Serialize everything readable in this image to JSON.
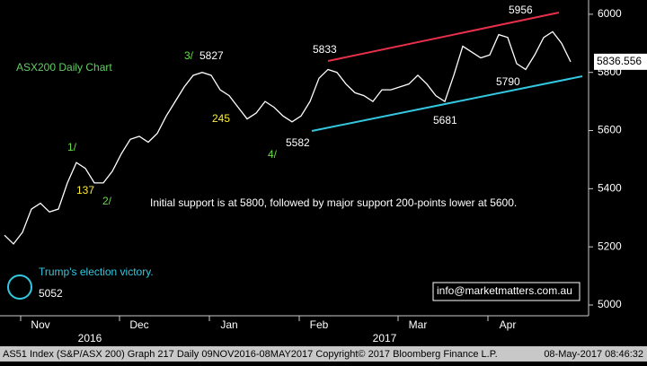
{
  "chart_data": {
    "type": "line",
    "title": "ASX200 Daily Chart",
    "color": "#ffffff",
    "categories": [
      null,
      null,
      null,
      null,
      "Nov",
      null,
      null,
      null,
      null,
      null,
      null,
      null,
      null,
      null,
      null,
      "Dec",
      null,
      null,
      null,
      null,
      null,
      null,
      null,
      null,
      null,
      "Jan",
      null,
      null,
      null,
      null,
      null,
      null,
      null,
      null,
      null,
      "Feb",
      null,
      null,
      null,
      null,
      null,
      null,
      null,
      null,
      null,
      null,
      "Mar",
      null,
      null,
      null,
      null,
      null,
      null,
      null,
      null,
      null,
      "Apr",
      null,
      null,
      null,
      null,
      null,
      null,
      null
    ],
    "values": [
      5240,
      5210,
      5250,
      5330,
      5350,
      5320,
      5330,
      5420,
      5490,
      5470,
      5420,
      5420,
      5460,
      5520,
      5570,
      5580,
      5560,
      5590,
      5650,
      5700,
      5750,
      5790,
      5800,
      5790,
      5740,
      5720,
      5680,
      5640,
      5660,
      5700,
      5680,
      5650,
      5630,
      5650,
      5700,
      5780,
      5810,
      5800,
      5760,
      5730,
      5720,
      5700,
      5740,
      5740,
      5750,
      5760,
      5790,
      5760,
      5720,
      5700,
      5790,
      5890,
      5870,
      5850,
      5860,
      5930,
      5920,
      5830,
      5810,
      5860,
      5920,
      5940,
      5900,
      5836.556
    ],
    "last_value": 5836.556,
    "years": [
      "2016",
      "2017"
    ],
    "ylim": [
      4963,
      6049
    ],
    "yticks": [
      5000,
      5200,
      5400,
      5600,
      5800,
      6000
    ],
    "annotations": [
      "3/",
      "5827",
      "245",
      "1/",
      "137",
      "2/",
      "5833",
      "5956",
      "4/",
      "5582",
      "5681",
      "5790",
      "Trump's election victory.",
      "5052",
      "Initial support is at 5800, followed by major support 200-points lower at 5600."
    ],
    "contact": "info@marketmatters.com.au",
    "footer": {
      "left": "AS51 Index (S&P/ASX 200) Graph 217  Daily 09NOV2016-08MAY2017  Copyright© 2017 Bloomberg Finance L.P.",
      "right": "08-May-2017 08:46:32"
    }
  }
}
